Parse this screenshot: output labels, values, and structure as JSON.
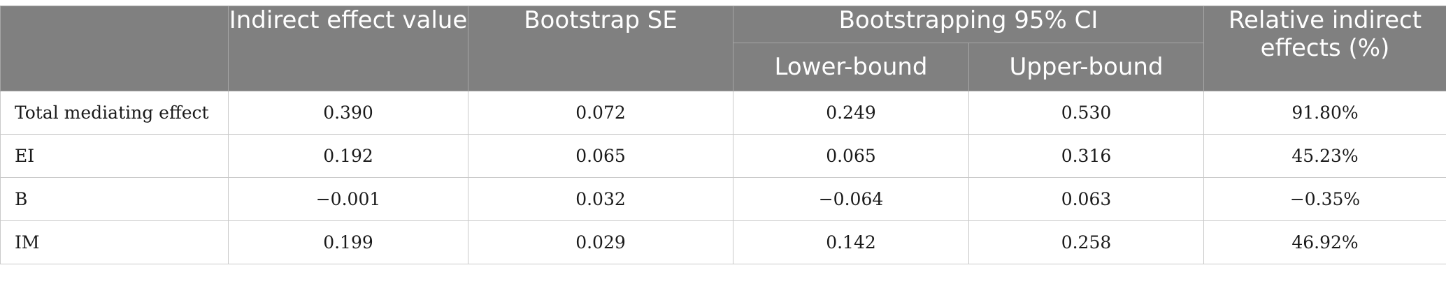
{
  "table": {
    "headers": {
      "indirect_effect_value": "Indirect effect value",
      "bootstrap_se": "Bootstrap SE",
      "bootstrapping_ci": "Bootstrapping 95% CI",
      "lower_bound": "Lower-bound",
      "upper_bound": "Upper-bound",
      "relative_indirect_effects": "Relative indirect effects (%)"
    },
    "rows": [
      {
        "label": "Total mediating effect",
        "indirect_effect": "0.390",
        "se": "0.072",
        "lower": "0.249",
        "upper": "0.530",
        "relative": "91.80%"
      },
      {
        "label": "EI",
        "indirect_effect": "0.192",
        "se": "0.065",
        "lower": "0.065",
        "upper": "0.316",
        "relative": "45.23%"
      },
      {
        "label": "B",
        "indirect_effect": "−0.001",
        "se": "0.032",
        "lower": "−0.064",
        "upper": "0.063",
        "relative": "−0.35%"
      },
      {
        "label": "IM",
        "indirect_effect": "0.199",
        "se": "0.029",
        "lower": "0.142",
        "upper": "0.258",
        "relative": "46.92%"
      }
    ]
  }
}
